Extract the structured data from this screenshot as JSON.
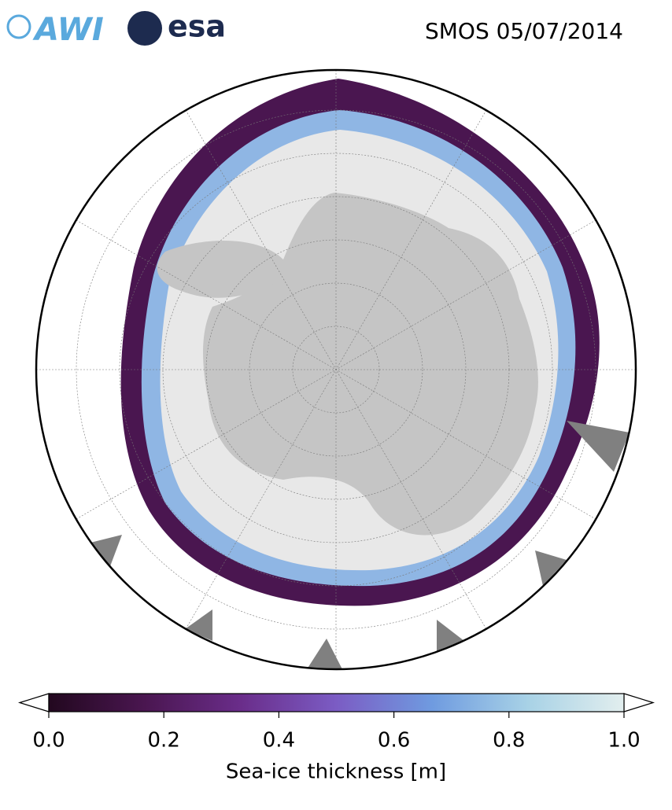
{
  "header": {
    "logos": [
      "AWI",
      "esa"
    ],
    "title": "SMOS 05/07/2014"
  },
  "colorbar": {
    "label": "Sea-ice thickness [m]",
    "lim": [
      0,
      1
    ],
    "ticks": [
      {
        "value": 0,
        "label": "0.0"
      },
      0.2,
      0.4,
      0.6,
      0.8,
      {
        "value": 1,
        "label": "1.0"
      }
    ],
    "colors": [
      "#22081f",
      "#4a1650",
      "#6a2d8a",
      "#7b5cc4",
      "#6f9be0",
      "#a8d2e6",
      "#e2eeee"
    ]
  }
}
